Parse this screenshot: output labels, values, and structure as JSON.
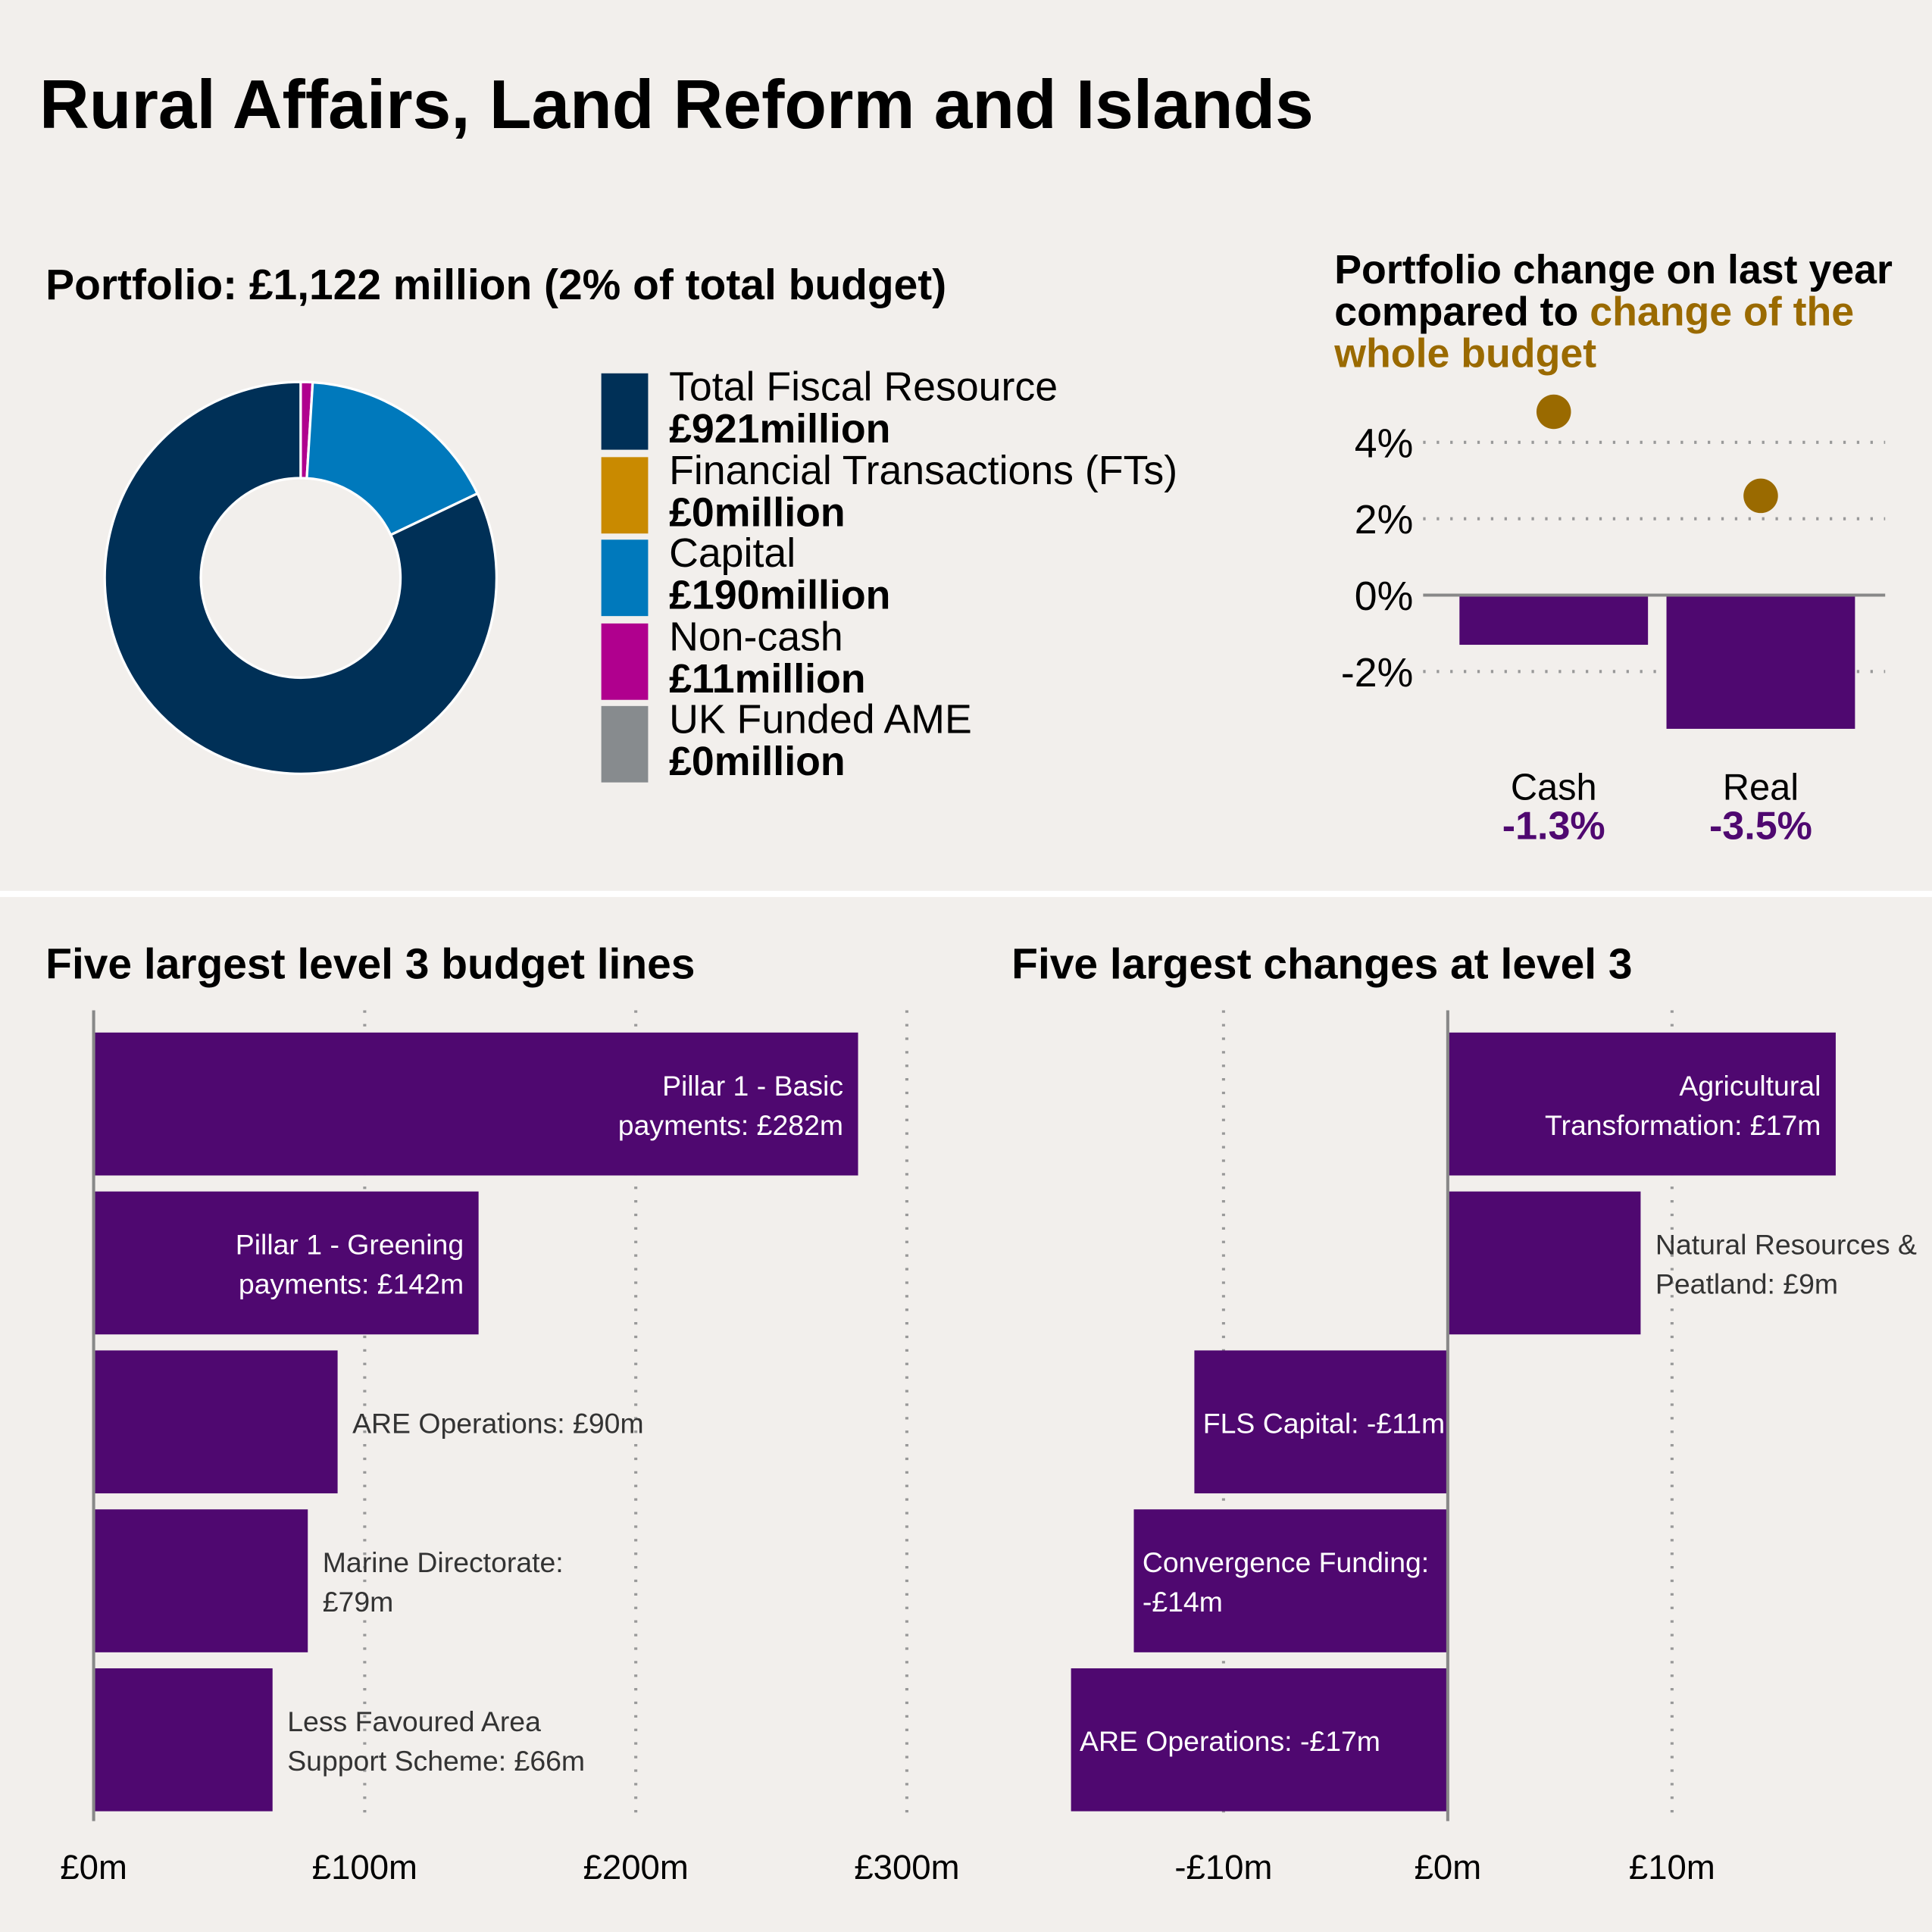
{
  "title": "Rural Affairs, Land Reform and Islands",
  "portfolio": {
    "heading": "Portfolio: £1,122 million (2% of total budget)",
    "chart_data": {
      "type": "pie",
      "donut": true,
      "categories": [
        "Total Fiscal Resource",
        "Financial Transactions (FTs)",
        "Capital",
        "Non-cash",
        "UK Funded AME"
      ],
      "values": [
        921,
        0,
        190,
        11,
        0
      ],
      "value_labels": [
        "£921million",
        "£0million",
        "£190million",
        "£11million",
        "£0million"
      ],
      "colors": [
        "#003057",
        "#c98a00",
        "#0079bc",
        "#b0008e",
        "#878b8e"
      ],
      "legend": "right"
    }
  },
  "change": {
    "heading_black": "Portfolio change on last year compared to ",
    "heading_gold": "change of the whole budget",
    "chart_data": {
      "type": "bar",
      "categories": [
        "Cash",
        "Real"
      ],
      "series": [
        {
          "values": [
            -1.3,
            -3.5
          ],
          "color": "#4f0870"
        },
        {
          "values": [
            4.8,
            2.6
          ],
          "color": "#9a6a00",
          "marker": "dot"
        }
      ],
      "value_labels": [
        "-1.3%",
        "-3.5%"
      ],
      "yticks": [
        "4%",
        "2%",
        "0%",
        "-2%"
      ],
      "ytick_values": [
        4,
        2,
        0,
        -2
      ],
      "ylim": [
        -4,
        6
      ],
      "grid": "dotted horizontal"
    }
  },
  "largest": {
    "heading": "Five largest level 3 budget lines",
    "chart_data": {
      "type": "bar",
      "orientation": "horizontal",
      "categories": [
        "Pillar 1 - Basic payments",
        "Pillar 1 - Greening payments",
        "ARE Operations",
        "Marine Directorate",
        "Less Favoured Area Support Scheme"
      ],
      "values": [
        282,
        142,
        90,
        79,
        66
      ],
      "labels": [
        [
          "Pillar 1 - Basic",
          "payments: £282m"
        ],
        [
          "Pillar 1 - Greening",
          "payments: £142m"
        ],
        [
          "ARE Operations: £90m"
        ],
        [
          "Marine Directorate:",
          "£79m"
        ],
        [
          "Less Favoured Area",
          "Support Scheme: £66m"
        ]
      ],
      "xticks": [
        "£0m",
        "£100m",
        "£200m",
        "£300m"
      ],
      "xtick_values": [
        0,
        100,
        200,
        300
      ],
      "xlim": [
        0,
        320
      ],
      "color": "#4f0870",
      "grid": "dotted vertical"
    }
  },
  "changes": {
    "heading": "Five largest changes at level 3",
    "chart_data": {
      "type": "bar",
      "orientation": "horizontal",
      "categories": [
        "Agricultural Transformation",
        "Natural Resources & Peatland",
        "FLS Capital",
        "Convergence Funding",
        "ARE Operations"
      ],
      "values": [
        17.3,
        8.6,
        -11.3,
        -14.0,
        -16.8
      ],
      "labels": [
        [
          "Agricultural",
          "Transformation: £17m"
        ],
        [
          "Natural Resources &",
          "Peatland: £9m"
        ],
        [
          "FLS Capital: -£11m"
        ],
        [
          "Convergence Funding:",
          "-£14m"
        ],
        [
          "ARE Operations: -£17m"
        ]
      ],
      "xticks": [
        "-£10m",
        "£0m",
        "£10m"
      ],
      "xtick_values": [
        -10,
        0,
        10
      ],
      "xlim": [
        -17,
        21
      ],
      "color": "#4f0870",
      "grid": "dotted vertical"
    }
  }
}
